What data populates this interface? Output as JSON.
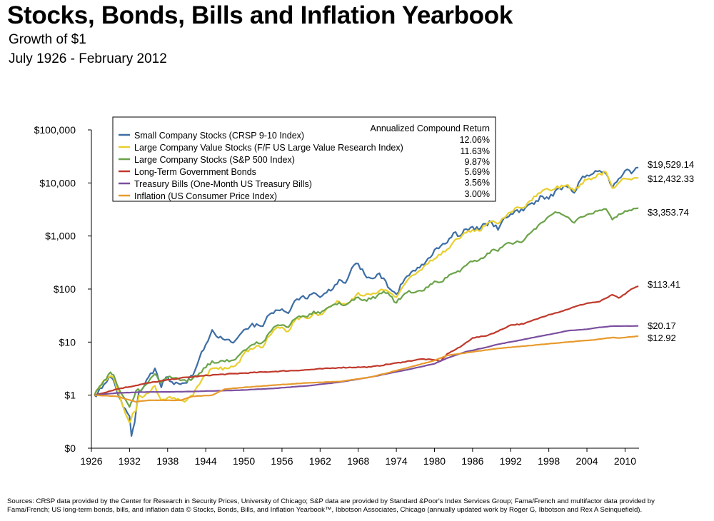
{
  "header": {
    "title": "Stocks, Bonds, Bills and Inflation Yearbook",
    "subtitle": "Growth of $1",
    "period": "July 1926 - February 2012"
  },
  "footer": {
    "sources_line1": "Sources: CRSP data provided by the Center for Research in Security Prices, University of Chicago; S&P data are provided by Standard &Poor's Index Services Group; Fama/French and multifactor data provided by",
    "sources_line2": "Fama/French; US long-term bonds, bills, and inflation data © Stocks, Bonds, Bills, and Inflation Yearbook™, Ibbotson Associates, Chicago (annually updated work by Roger G, Ibbotson and Rex A Seinquefield)."
  },
  "chart_data": {
    "type": "line",
    "title": "Stocks, Bonds, Bills and Inflation Yearbook",
    "subtitle": "Growth of $1",
    "xlabel": "",
    "ylabel": "",
    "x_scale": "linear",
    "y_scale": "log",
    "xlim": [
      1926,
      2012.2
    ],
    "ylim": [
      0.1,
      100000
    ],
    "x_ticks": [
      1926,
      1932,
      1938,
      1944,
      1950,
      1956,
      1962,
      1968,
      1974,
      1980,
      1986,
      1992,
      1998,
      2004,
      2010
    ],
    "y_ticks": [
      {
        "value": 0.1,
        "label": "$0"
      },
      {
        "value": 1,
        "label": "$1"
      },
      {
        "value": 10,
        "label": "$10"
      },
      {
        "value": 100,
        "label": "$100"
      },
      {
        "value": 1000,
        "label": "$1,000"
      },
      {
        "value": 10000,
        "label": "$10,000"
      },
      {
        "value": 100000,
        "label": "$100,000"
      }
    ],
    "grid": false,
    "legend": {
      "placement": "top-left",
      "header": "Annualized Compound Return"
    },
    "series": [
      {
        "name": "Small Company Stocks (CRSP 9-10 Index)",
        "return": "12.06%",
        "end_label": "$19,529.14",
        "color": "#3e6ea5",
        "x": [
          1926.5,
          1927,
          1928,
          1928.8,
          1929.5,
          1930,
          1931,
          1932,
          1932.3,
          1932.8,
          1933.5,
          1934,
          1935,
          1936,
          1937,
          1937.5,
          1938,
          1939,
          1940,
          1941,
          1942,
          1943,
          1944,
          1945,
          1946,
          1947,
          1948,
          1949,
          1950,
          1951,
          1952,
          1953,
          1954,
          1955,
          1956,
          1957,
          1958,
          1959,
          1960,
          1961,
          1962,
          1963,
          1964,
          1965,
          1966,
          1967,
          1968,
          1969,
          1970,
          1971,
          1972,
          1973,
          1974,
          1975,
          1976,
          1977,
          1978,
          1979,
          1980,
          1981,
          1982,
          1983,
          1984,
          1985,
          1986,
          1987,
          1988,
          1989,
          1990,
          1991,
          1992,
          1993,
          1994,
          1995,
          1996,
          1997,
          1998,
          1999,
          2000,
          2001,
          2002,
          2003,
          2004,
          2005,
          2006,
          2007,
          2008,
          2009,
          2010,
          2011,
          2012.1
        ],
        "y": [
          1,
          1.1,
          1.6,
          2.2,
          1.9,
          1.2,
          0.6,
          0.4,
          0.17,
          0.3,
          1.2,
          1.3,
          2.2,
          3.2,
          1.4,
          1.9,
          2.2,
          1.6,
          1.6,
          1.7,
          2.4,
          5,
          9,
          17,
          12,
          11,
          10,
          12,
          17,
          20,
          22,
          20,
          33,
          40,
          42,
          35,
          60,
          70,
          66,
          85,
          70,
          85,
          100,
          150,
          130,
          250,
          300,
          190,
          160,
          190,
          160,
          100,
          80,
          130,
          180,
          220,
          290,
          380,
          550,
          650,
          750,
          1150,
          1000,
          1350,
          1500,
          1300,
          1700,
          1800,
          1300,
          2200,
          2600,
          3100,
          3000,
          4000,
          4600,
          5600,
          5000,
          7000,
          7500,
          8300,
          6500,
          11500,
          14000,
          15000,
          17000,
          15000,
          8200,
          12000,
          17000,
          15000,
          19529.14
        ]
      },
      {
        "name": "Large Company Value Stocks (F/F US Large Value Research Index)",
        "return": "11.63%",
        "end_label": "$12,432.33",
        "color": "#e9cf2e",
        "x": [
          1926.5,
          1927,
          1928,
          1929,
          1929.5,
          1930,
          1931,
          1932,
          1932.5,
          1933,
          1933.5,
          1934,
          1935,
          1936,
          1937,
          1938,
          1939,
          1940,
          1941,
          1942,
          1943,
          1944,
          1945,
          1946,
          1947,
          1948,
          1949,
          1950,
          1951,
          1952,
          1953,
          1954,
          1955,
          1956,
          1957,
          1958,
          1959,
          1960,
          1961,
          1962,
          1963,
          1964,
          1965,
          1966,
          1967,
          1968,
          1969,
          1970,
          1971,
          1972,
          1973,
          1974,
          1975,
          1976,
          1977,
          1978,
          1979,
          1980,
          1981,
          1982,
          1983,
          1984,
          1985,
          1986,
          1987,
          1988,
          1989,
          1990,
          1991,
          1992,
          1993,
          1994,
          1995,
          1996,
          1997,
          1998,
          1999,
          2000,
          2001,
          2002,
          2003,
          2004,
          2005,
          2006,
          2007,
          2008,
          2009,
          2010,
          2011,
          2012.1
        ],
        "y": [
          1,
          1.3,
          1.9,
          2.3,
          2.1,
          1.3,
          0.6,
          0.3,
          0.45,
          0.5,
          1,
          0.9,
          1.1,
          1.5,
          0.8,
          0.9,
          0.9,
          0.8,
          0.8,
          1,
          1.6,
          2.4,
          3.2,
          3.1,
          3.3,
          3.5,
          4,
          6,
          7.5,
          8.5,
          8,
          13,
          18,
          19,
          16,
          25,
          30,
          28,
          35,
          33,
          42,
          50,
          58,
          52,
          65,
          85,
          75,
          78,
          85,
          95,
          85,
          70,
          110,
          160,
          190,
          230,
          300,
          370,
          440,
          560,
          780,
          900,
          1150,
          1300,
          1250,
          1550,
          1900,
          1700,
          2200,
          2800,
          3500,
          3400,
          4600,
          5600,
          7200,
          7500,
          7800,
          9000,
          9200,
          7000,
          9500,
          11500,
          12500,
          15000,
          16000,
          8000,
          10000,
          12000,
          11500,
          12432.33
        ]
      },
      {
        "name": "Large Company Stocks (S&P 500 Index)",
        "return": "9.87%",
        "end_label": "$3,353.74",
        "color": "#6ba34a",
        "x": [
          1926.5,
          1927,
          1928,
          1929,
          1929.5,
          1930,
          1931,
          1932,
          1932.5,
          1933,
          1934,
          1935,
          1936,
          1937,
          1938,
          1939,
          1940,
          1941,
          1942,
          1943,
          1944,
          1945,
          1946,
          1947,
          1948,
          1949,
          1950,
          1951,
          1952,
          1953,
          1954,
          1955,
          1956,
          1957,
          1958,
          1959,
          1960,
          1961,
          1962,
          1963,
          1964,
          1965,
          1966,
          1967,
          1968,
          1969,
          1970,
          1971,
          1972,
          1973,
          1974,
          1975,
          1976,
          1977,
          1978,
          1979,
          1980,
          1981,
          1982,
          1983,
          1984,
          1985,
          1986,
          1987,
          1988,
          1989,
          1990,
          1991,
          1992,
          1993,
          1994,
          1995,
          1996,
          1997,
          1998,
          1999,
          2000,
          2001,
          2002,
          2003,
          2004,
          2005,
          2006,
          2007,
          2008,
          2009,
          2010,
          2011,
          2012.1
        ],
        "y": [
          1,
          1.3,
          1.9,
          2.7,
          2.4,
          1.6,
          0.95,
          0.6,
          0.8,
          1.2,
          1.3,
          1.8,
          2.5,
          1.7,
          2.2,
          2.1,
          1.9,
          1.8,
          2.1,
          2.6,
          3.3,
          4.4,
          4.1,
          4.3,
          4.5,
          5.3,
          7,
          8.5,
          10,
          10,
          15,
          20,
          21,
          19,
          27,
          30,
          30,
          38,
          35,
          43,
          50,
          56,
          50,
          62,
          70,
          63,
          65,
          75,
          90,
          75,
          55,
          75,
          93,
          87,
          92,
          108,
          140,
          135,
          165,
          200,
          212,
          280,
          330,
          350,
          410,
          540,
          520,
          680,
          730,
          800,
          810,
          1110,
          1370,
          1820,
          2340,
          2830,
          2570,
          2270,
          1770,
          2280,
          2530,
          2650,
          3070,
          3240,
          2040,
          2580,
          2970,
          3030,
          3353.74
        ]
      },
      {
        "name": "Long-Term Government Bonds",
        "return": "5.69%",
        "end_label": "$113.41",
        "color": "#c0392b",
        "x": [
          1926.5,
          1930,
          1935,
          1940,
          1945,
          1950,
          1955,
          1960,
          1965,
          1970,
          1975,
          1978,
          1980,
          1981,
          1982,
          1984,
          1986,
          1988,
          1990,
          1992,
          1994,
          1996,
          1998,
          2000,
          2002,
          2004,
          2006,
          2008,
          2009,
          2010,
          2011,
          2012.1
        ],
        "y": [
          1,
          1.3,
          1.7,
          2.1,
          2.4,
          2.6,
          2.8,
          3,
          3.3,
          3.4,
          4.2,
          4.8,
          4.6,
          4.4,
          6,
          8,
          12,
          13,
          16,
          21,
          22,
          27,
          33,
          38,
          46,
          54,
          58,
          78,
          68,
          80,
          100,
          113.41
        ]
      },
      {
        "name": "Treasury Bills (One-Month US Treasury Bills)",
        "return": "3.56%",
        "end_label": "$20.17",
        "color": "#7b4fa0",
        "x": [
          1926.5,
          1930,
          1935,
          1940,
          1945,
          1950,
          1955,
          1960,
          1965,
          1970,
          1975,
          1980,
          1982,
          1985,
          1988,
          1990,
          1993,
          1996,
          1999,
          2001,
          2004,
          2006,
          2008,
          2010,
          2012.1
        ],
        "y": [
          1,
          1.1,
          1.15,
          1.16,
          1.2,
          1.25,
          1.35,
          1.5,
          1.75,
          2.2,
          2.9,
          3.9,
          5,
          6.6,
          7.9,
          9.1,
          10.6,
          12.5,
          14.6,
          16.4,
          17.5,
          19,
          20,
          20.1,
          20.17
        ]
      },
      {
        "name": "Inflation (US Consumer Price Index)",
        "return": "3.00%",
        "end_label": "$12.92",
        "color": "#e79a2c",
        "x": [
          1926.5,
          1930,
          1933,
          1935,
          1940,
          1942,
          1945,
          1947,
          1950,
          1955,
          1960,
          1965,
          1970,
          1975,
          1980,
          1982,
          1985,
          1990,
          1995,
          2000,
          2005,
          2008,
          2009,
          2012.1
        ],
        "y": [
          1,
          0.95,
          0.75,
          0.8,
          0.8,
          0.95,
          1,
          1.3,
          1.4,
          1.55,
          1.7,
          1.8,
          2.2,
          3.1,
          4.5,
          5.6,
          6.3,
          7.6,
          8.6,
          9.8,
          11,
          12.2,
          11.9,
          12.92
        ]
      }
    ]
  }
}
